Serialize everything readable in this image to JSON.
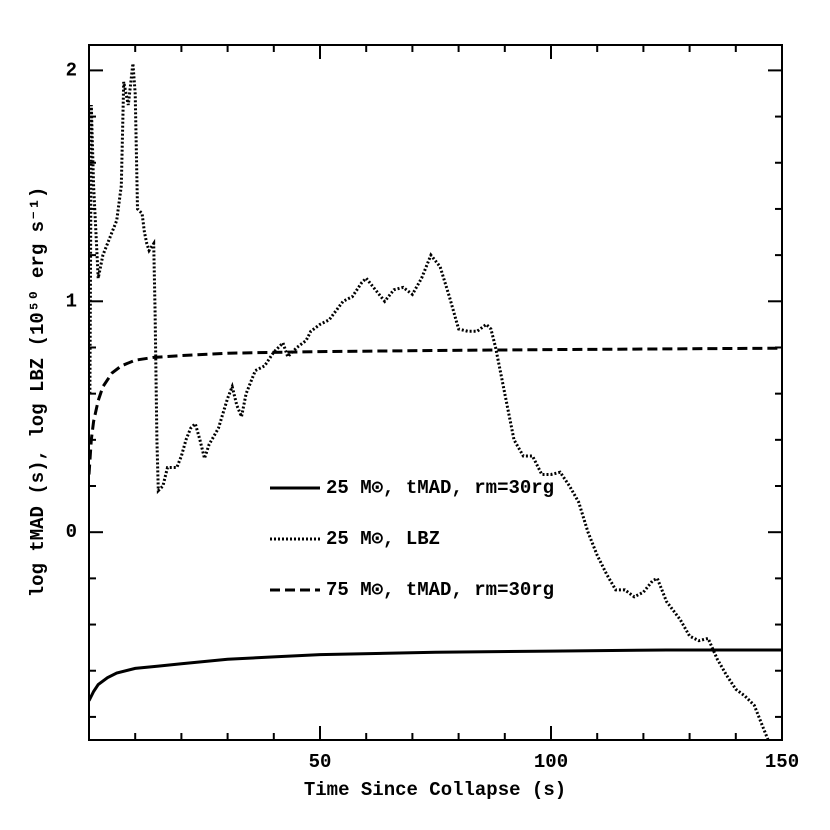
{
  "chart_data": {
    "type": "line",
    "xlabel": "Time Since Collapse (s)",
    "ylabel": "log tMAD (s), log LBZ (10⁵⁰ erg s⁻¹)",
    "xlim": [
      0,
      150
    ],
    "ylim": [
      -0.9,
      2.11
    ],
    "xticks": [
      50,
      100,
      150
    ],
    "yticks": [
      0,
      1,
      2
    ],
    "xminorticks": [
      10,
      20,
      30,
      40,
      60,
      70,
      80,
      90,
      110,
      120,
      130,
      140
    ],
    "yminorticks": [
      -0.8,
      -0.6,
      -0.4,
      -0.2,
      0.2,
      0.4,
      0.6,
      0.8,
      1.2,
      1.4,
      1.6,
      1.8
    ],
    "series": [
      {
        "name": "25 M⊙, tMAD, rm=30rg",
        "color": "#000000",
        "style": "solid",
        "x": [
          0,
          1,
          2,
          4,
          6,
          10,
          15,
          20,
          30,
          40,
          50,
          75,
          100,
          125,
          150
        ],
        "values": [
          -0.73,
          -0.69,
          -0.66,
          -0.63,
          -0.61,
          -0.59,
          -0.58,
          -0.57,
          -0.55,
          -0.54,
          -0.53,
          -0.52,
          -0.515,
          -0.51,
          -0.51
        ]
      },
      {
        "name": "25 M⊙, LBZ",
        "color": "#000000",
        "style": "dotted",
        "x": [
          0.2,
          0.5,
          1,
          2,
          3,
          4,
          5,
          6,
          7,
          7.5,
          8.5,
          9.5,
          10,
          10.5,
          11.5,
          12,
          12.5,
          13,
          14,
          14.3,
          14.7,
          15,
          16,
          17,
          19,
          20,
          21,
          22,
          23,
          24,
          25,
          26,
          28,
          30,
          31,
          32,
          33,
          34,
          36,
          38,
          40,
          42,
          43,
          45,
          47,
          48,
          50,
          52,
          55,
          57,
          59,
          60,
          62,
          64,
          66,
          68,
          70,
          72,
          74,
          76,
          78,
          80,
          82,
          84,
          86,
          87,
          88,
          90,
          92,
          94,
          96,
          98,
          100,
          102,
          104,
          106,
          108,
          110,
          112,
          114,
          116,
          118,
          120,
          122,
          123,
          125,
          128,
          130,
          132,
          134,
          136,
          138,
          140,
          142,
          144,
          146,
          147
        ],
        "values": [
          0.6,
          1.85,
          1.5,
          1.1,
          1.2,
          1.25,
          1.3,
          1.35,
          1.5,
          1.95,
          1.85,
          2.03,
          1.9,
          1.4,
          1.38,
          1.3,
          1.25,
          1.22,
          1.25,
          0.95,
          0.4,
          0.18,
          0.2,
          0.28,
          0.28,
          0.33,
          0.4,
          0.45,
          0.47,
          0.4,
          0.32,
          0.38,
          0.45,
          0.58,
          0.63,
          0.55,
          0.5,
          0.6,
          0.7,
          0.72,
          0.78,
          0.82,
          0.76,
          0.8,
          0.83,
          0.87,
          0.9,
          0.92,
          1.0,
          1.02,
          1.08,
          1.1,
          1.05,
          1.0,
          1.05,
          1.06,
          1.03,
          1.1,
          1.2,
          1.15,
          1.02,
          0.88,
          0.87,
          0.87,
          0.9,
          0.88,
          0.8,
          0.6,
          0.4,
          0.33,
          0.33,
          0.25,
          0.25,
          0.26,
          0.2,
          0.13,
          0.0,
          -0.1,
          -0.18,
          -0.25,
          -0.25,
          -0.28,
          -0.26,
          -0.21,
          -0.2,
          -0.3,
          -0.38,
          -0.45,
          -0.47,
          -0.46,
          -0.55,
          -0.62,
          -0.68,
          -0.71,
          -0.75,
          -0.85,
          -0.9
        ]
      },
      {
        "name": "75 M⊙, tMAD, rm=30rg",
        "color": "#000000",
        "style": "dashed",
        "x": [
          0,
          0.5,
          1,
          2,
          3,
          5,
          7,
          10,
          14,
          20,
          30,
          50,
          75,
          100,
          125,
          150
        ],
        "values": [
          0.25,
          0.4,
          0.48,
          0.57,
          0.63,
          0.69,
          0.72,
          0.745,
          0.757,
          0.765,
          0.775,
          0.782,
          0.787,
          0.791,
          0.794,
          0.797
        ]
      }
    ]
  }
}
